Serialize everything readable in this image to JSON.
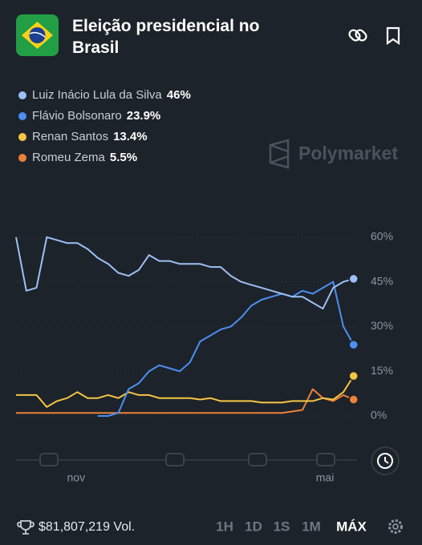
{
  "header": {
    "title": "Eleição presidencial no Brasil"
  },
  "chart_data": {
    "type": "line",
    "x": [
      0,
      3,
      6,
      9,
      12,
      15,
      18,
      21,
      24,
      27,
      30,
      33,
      36,
      39,
      42,
      45,
      48,
      51,
      54,
      57,
      60,
      63,
      66,
      69,
      72,
      75,
      78,
      81,
      84,
      87,
      90,
      93,
      96,
      99
    ],
    "xlim": [
      0,
      100
    ],
    "xticks": [
      {
        "value": 17.6,
        "label": "nov"
      },
      {
        "value": 90.6,
        "label": "mai"
      }
    ],
    "ylim": [
      -2,
      64
    ],
    "yticks": [
      {
        "value": 0,
        "label": "0%"
      },
      {
        "value": 15,
        "label": "15%"
      },
      {
        "value": 30,
        "label": "30%"
      },
      {
        "value": 45,
        "label": "45%"
      },
      {
        "value": 60,
        "label": "60%"
      }
    ],
    "grid": true,
    "series": [
      {
        "name": "Luiz Inácio Lula da Silva",
        "color": "#9dc0f4",
        "values": [
          60,
          42,
          43,
          60,
          59,
          58,
          58,
          56,
          53,
          51,
          48,
          47,
          49,
          54,
          52,
          52,
          51,
          51,
          51,
          50,
          50,
          47,
          45,
          44,
          43,
          42,
          41,
          40,
          40,
          38,
          36,
          43,
          45,
          46
        ],
        "value_labels": [
          null,
          null,
          null,
          null,
          null,
          null,
          null,
          null,
          null,
          null,
          null,
          null,
          null,
          null,
          null,
          null,
          null,
          null,
          null,
          null,
          null,
          null,
          null,
          null,
          null,
          null,
          null,
          null,
          null,
          null,
          null,
          null,
          null,
          "46%"
        ]
      },
      {
        "name": "Flávio Bolsonaro",
        "color": "#4c8ef2",
        "values": [
          null,
          null,
          null,
          null,
          null,
          null,
          null,
          null,
          0,
          0,
          1,
          9,
          11,
          15,
          17,
          16,
          15,
          18,
          25,
          27,
          29,
          30,
          33,
          37,
          39,
          40,
          41,
          40,
          42,
          41,
          43,
          45,
          30,
          23.9
        ],
        "value_labels": [
          null,
          null,
          null,
          null,
          null,
          null,
          null,
          null,
          null,
          null,
          null,
          null,
          null,
          null,
          null,
          null,
          null,
          null,
          null,
          null,
          null,
          null,
          null,
          null,
          null,
          null,
          null,
          null,
          null,
          null,
          null,
          null,
          null,
          "23.9%"
        ]
      },
      {
        "name": "Renan Santos",
        "color": "#f6c544",
        "values": [
          7,
          7,
          7,
          3,
          5,
          6,
          8,
          6,
          6,
          7,
          6,
          8,
          7,
          7,
          6,
          6,
          6,
          6,
          5.5,
          6,
          5,
          5,
          5,
          5,
          4.5,
          4.5,
          4.5,
          5,
          5,
          5,
          6,
          5.5,
          8,
          13.4
        ],
        "value_labels": [
          null,
          null,
          null,
          null,
          null,
          null,
          null,
          null,
          null,
          null,
          null,
          null,
          null,
          null,
          null,
          null,
          null,
          null,
          null,
          null,
          null,
          null,
          null,
          null,
          null,
          null,
          null,
          null,
          null,
          null,
          null,
          null,
          null,
          "13.4%"
        ]
      },
      {
        "name": "Romeu Zema",
        "color": "#ec8139",
        "values": [
          1,
          1,
          1,
          1,
          1,
          1,
          1,
          1,
          1,
          1,
          1,
          1,
          1,
          1,
          1,
          1,
          1,
          1,
          1,
          1,
          1,
          1,
          1,
          1,
          1,
          1,
          1,
          1.5,
          2,
          9,
          6,
          5,
          7,
          5.5
        ],
        "value_labels": [
          null,
          null,
          null,
          null,
          null,
          null,
          null,
          null,
          null,
          null,
          null,
          null,
          null,
          null,
          null,
          null,
          null,
          null,
          null,
          null,
          null,
          null,
          null,
          null,
          null,
          null,
          null,
          null,
          null,
          null,
          null,
          null,
          null,
          "5.5%"
        ]
      }
    ]
  },
  "ui": {
    "watermark": "Polymarket",
    "volume": "$81,807,219 Vol.",
    "ranges": [
      "1H",
      "1D",
      "1S",
      "1M",
      "MÁX"
    ],
    "active_range": "MÁX"
  }
}
